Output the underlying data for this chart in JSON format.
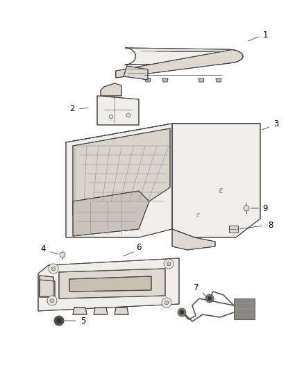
{
  "background_color": "#ffffff",
  "fig_width": 4.38,
  "fig_height": 5.33,
  "dpi": 100,
  "label_fontsize": 8.5,
  "label_color": "#000000",
  "line_color": "#444444",
  "lw": 0.7,
  "fill_light": "#f0eeea",
  "fill_mid": "#ddd8d0",
  "fill_dark": "#c8c0b0",
  "fill_very_dark": "#a09888"
}
